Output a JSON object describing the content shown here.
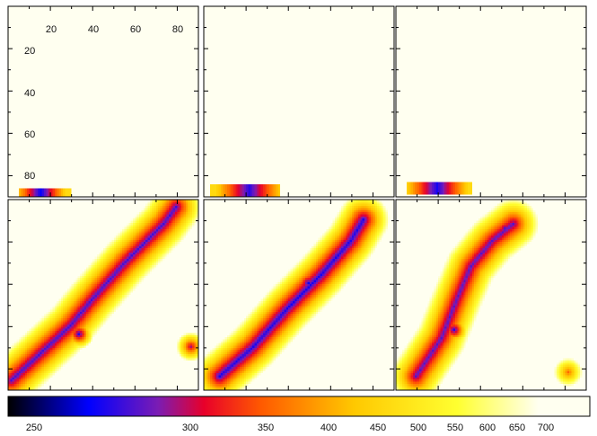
{
  "chart_data": {
    "type": "heatmap",
    "layout": {
      "rows": 2,
      "cols": 3
    },
    "grid": false,
    "image_axis_range": [
      1,
      90
    ],
    "x_tick_labels": [
      "20",
      "40",
      "60",
      "80"
    ],
    "y_tick_labels": [
      "20",
      "40",
      "60",
      "80"
    ],
    "colorbar": {
      "orientation": "horizontal",
      "placement": "bottom",
      "range": [
        230,
        735
      ],
      "tick_labels": [
        "250",
        "300",
        "350",
        "400",
        "450",
        "500",
        "550",
        "600",
        "650",
        "700"
      ],
      "stops": [
        {
          "value": 230,
          "color": "#000000"
        },
        {
          "value": 300,
          "color": "#0000ff"
        },
        {
          "value": 360,
          "color": "#7a1cb4"
        },
        {
          "value": 400,
          "color": "#e8002a"
        },
        {
          "value": 450,
          "color": "#ff5a00"
        },
        {
          "value": 530,
          "color": "#ffc800"
        },
        {
          "value": 620,
          "color": "#ffff30"
        },
        {
          "value": 690,
          "color": "#fffff0"
        },
        {
          "value": 735,
          "color": "#fffff0"
        }
      ]
    },
    "panels": [
      {
        "row": 0,
        "col": 0,
        "feature": "strip",
        "strip": {
          "x_range": [
            6,
            30
          ],
          "y_range": [
            87,
            90
          ],
          "core_x": 16,
          "core_value": 300
        }
      },
      {
        "row": 0,
        "col": 1,
        "feature": "strip",
        "strip": {
          "x_range": [
            4,
            36
          ],
          "y_range": [
            85,
            90
          ],
          "core_x": 22,
          "core_value": 320
        }
      },
      {
        "row": 0,
        "col": 2,
        "feature": "strip",
        "strip": {
          "x_range": [
            6,
            36
          ],
          "y_range": [
            84,
            89
          ],
          "core_x": 20,
          "core_value": 310
        }
      },
      {
        "row": 1,
        "col": 0,
        "feature": "diagonal",
        "core_value": 330,
        "band": [
          [
            2,
            86
          ],
          [
            30,
            60
          ],
          [
            40,
            48
          ],
          [
            56,
            30
          ],
          [
            74,
            12
          ],
          [
            80,
            4
          ]
        ],
        "blobs": [
          {
            "x": 34,
            "y": 64,
            "value": 320
          },
          {
            "x": 58,
            "y": 26,
            "value": 360
          },
          {
            "x": 87,
            "y": 70,
            "value": 380
          }
        ]
      },
      {
        "row": 1,
        "col": 1,
        "feature": "diagonal",
        "core_value": 310,
        "band": [
          [
            8,
            84
          ],
          [
            24,
            70
          ],
          [
            40,
            52
          ],
          [
            56,
            36
          ],
          [
            70,
            20
          ],
          [
            76,
            10
          ]
        ],
        "blobs": [
          {
            "x": 50,
            "y": 40,
            "value": 300
          },
          {
            "x": 68,
            "y": 22,
            "value": 330
          }
        ]
      },
      {
        "row": 1,
        "col": 2,
        "feature": "diagonal",
        "core_value": 340,
        "band": [
          [
            10,
            84
          ],
          [
            22,
            66
          ],
          [
            30,
            46
          ],
          [
            36,
            32
          ],
          [
            46,
            20
          ],
          [
            56,
            12
          ]
        ],
        "blobs": [
          {
            "x": 28,
            "y": 62,
            "value": 320
          },
          {
            "x": 52,
            "y": 14,
            "value": 340
          },
          {
            "x": 82,
            "y": 82,
            "value": 460
          }
        ]
      }
    ]
  }
}
